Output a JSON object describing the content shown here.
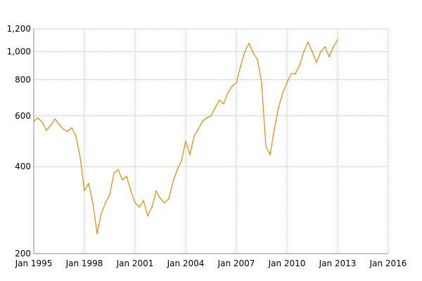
{
  "chart_data": {
    "type": "line",
    "title": "",
    "xlabel": "",
    "ylabel": "",
    "y_scale": "log",
    "ylim": [
      200,
      1200
    ],
    "xlim": [
      "1995-01",
      "2016-01"
    ],
    "grid": true,
    "line_color": "#e08a00",
    "y_ticks": [
      {
        "value": 200,
        "label": "200"
      },
      {
        "value": 400,
        "label": "400"
      },
      {
        "value": 600,
        "label": "600"
      },
      {
        "value": 800,
        "label": "800"
      },
      {
        "value": 1000,
        "label": "1,000"
      },
      {
        "value": 1200,
        "label": "1,200"
      }
    ],
    "x_ticks": [
      {
        "value": "1995-01",
        "label": "Jan 1995"
      },
      {
        "value": "1998-01",
        "label": "Jan 1998"
      },
      {
        "value": "2001-01",
        "label": "Jan 2001"
      },
      {
        "value": "2004-01",
        "label": "Jan 2004"
      },
      {
        "value": "2007-01",
        "label": "Jan 2007"
      },
      {
        "value": "2010-01",
        "label": "Jan 2010"
      },
      {
        "value": "2013-01",
        "label": "Jan 2013"
      },
      {
        "value": "2016-01",
        "label": "Jan 2016"
      }
    ],
    "series": [
      {
        "x": [
          "1995-01",
          "1995-04",
          "1995-07",
          "1995-10",
          "1996-01",
          "1996-04",
          "1996-07",
          "1996-10",
          "1997-01",
          "1997-04",
          "1997-07",
          "1997-10",
          "1998-01",
          "1998-04",
          "1998-07",
          "1998-10",
          "1999-01",
          "1999-04",
          "1999-07",
          "1999-10",
          "2000-01",
          "2000-04",
          "2000-07",
          "2000-10",
          "2001-01",
          "2001-04",
          "2001-07",
          "2001-10",
          "2002-01",
          "2002-04",
          "2002-07",
          "2002-10",
          "2003-01",
          "2003-04",
          "2003-07",
          "2003-10",
          "2004-01",
          "2004-04",
          "2004-07",
          "2004-10",
          "2005-01",
          "2005-04",
          "2005-07",
          "2005-10",
          "2006-01",
          "2006-04",
          "2006-07",
          "2006-10",
          "2007-01",
          "2007-04",
          "2007-07",
          "2007-10",
          "2008-01",
          "2008-04",
          "2008-07",
          "2008-10",
          "2009-01",
          "2009-04",
          "2009-07",
          "2009-10",
          "2010-01",
          "2010-04",
          "2010-07",
          "2010-10",
          "2011-01",
          "2011-04",
          "2011-07",
          "2011-10",
          "2012-01",
          "2012-04",
          "2012-07",
          "2012-10",
          "2013-01"
        ],
        "y": [
          575,
          590,
          570,
          535,
          555,
          585,
          560,
          540,
          530,
          545,
          510,
          430,
          330,
          350,
          300,
          235,
          275,
          300,
          320,
          380,
          390,
          360,
          370,
          330,
          300,
          290,
          305,
          270,
          290,
          330,
          310,
          300,
          310,
          355,
          390,
          420,
          490,
          440,
          510,
          540,
          575,
          590,
          600,
          640,
          680,
          660,
          720,
          760,
          780,
          890,
          1000,
          1070,
          990,
          940,
          780,
          470,
          440,
          540,
          640,
          720,
          780,
          840,
          840,
          900,
          1000,
          1080,
          1000,
          920,
          1000,
          1040,
          960,
          1040,
          1100
        ]
      }
    ]
  }
}
